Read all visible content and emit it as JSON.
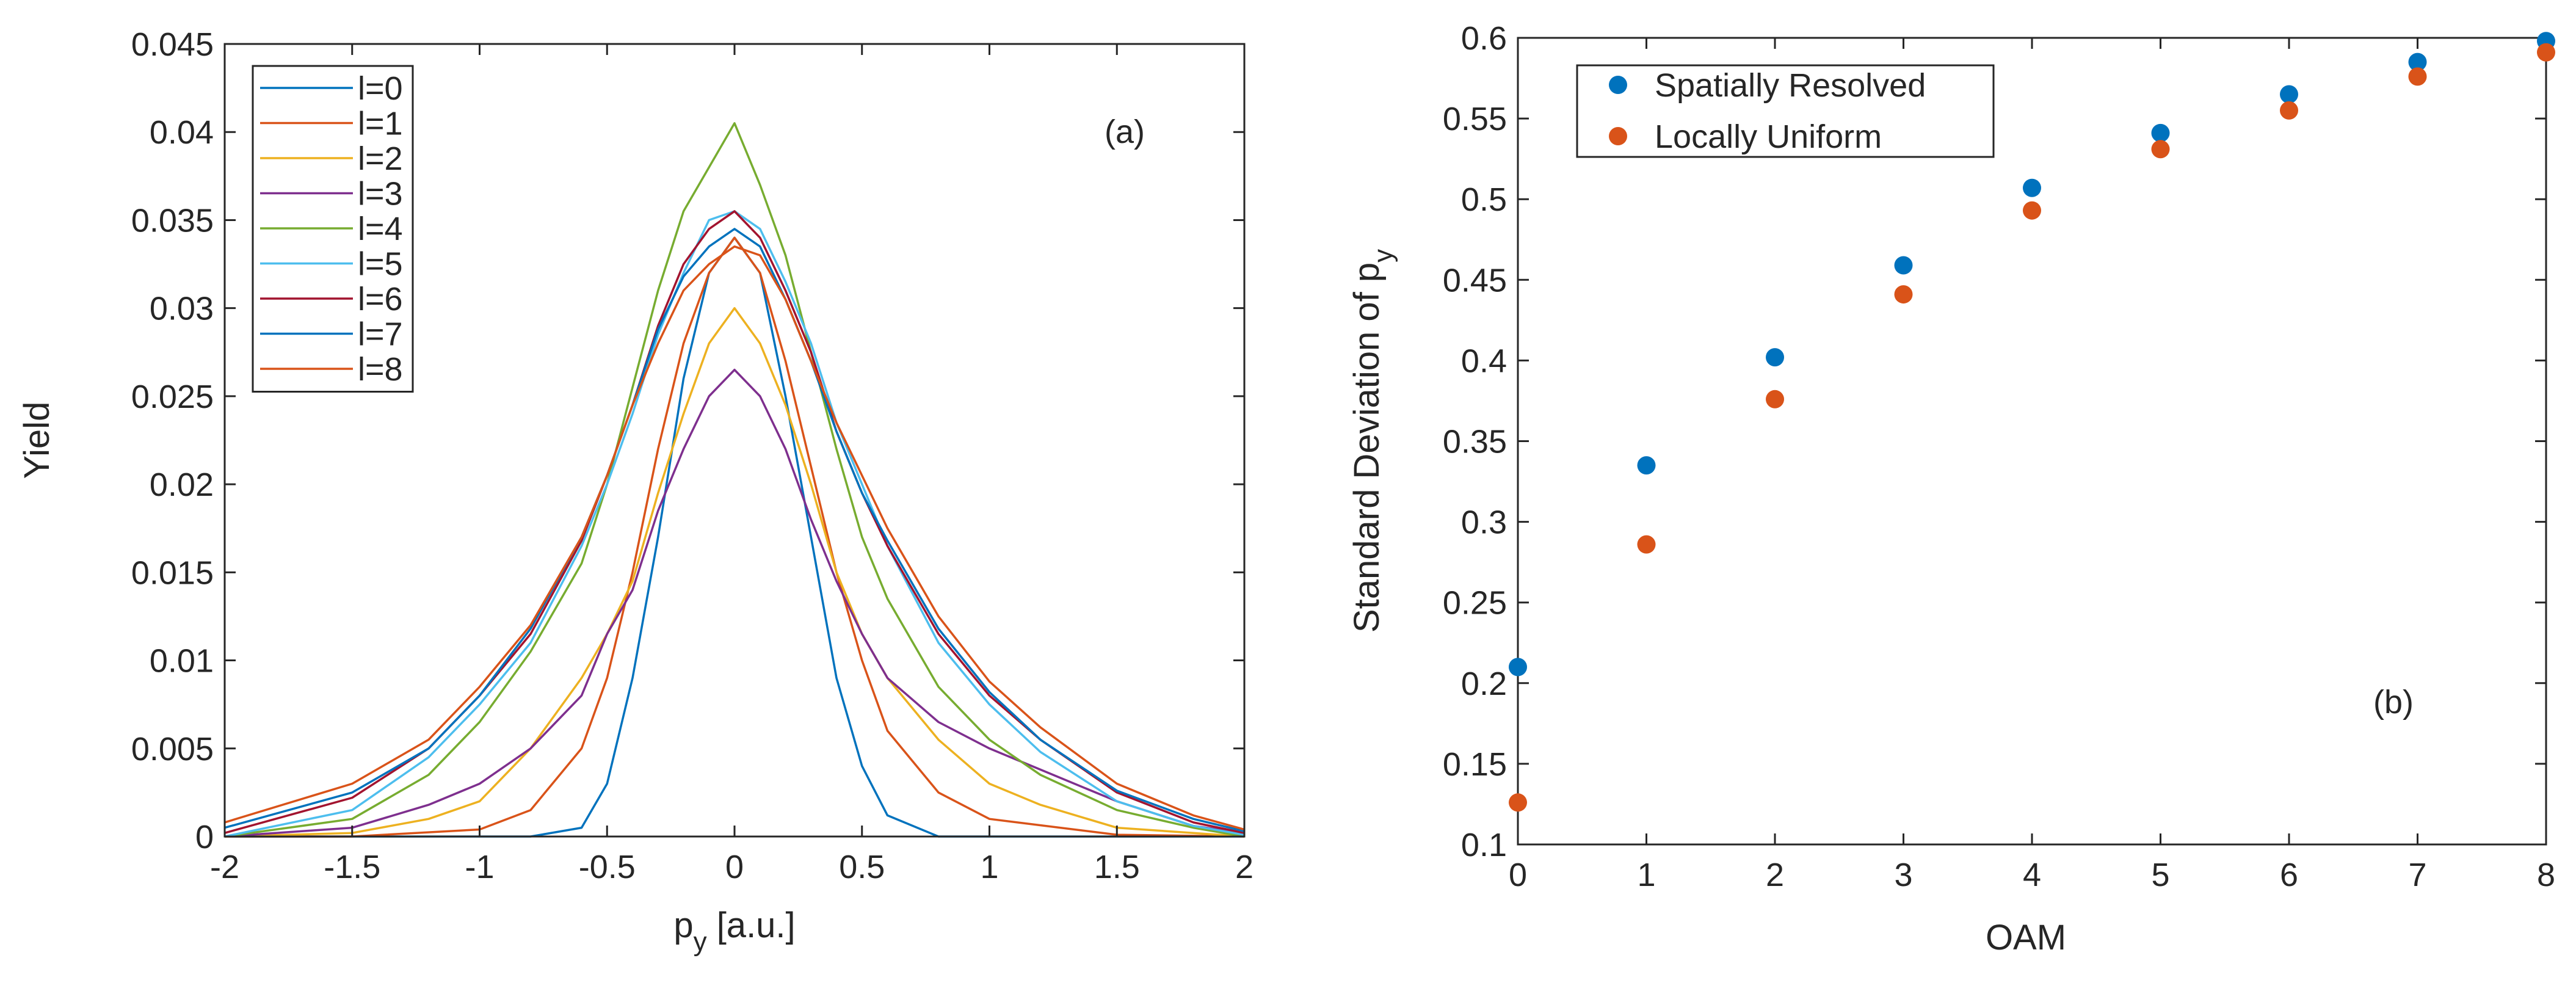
{
  "chart_data": [
    {
      "type": "line",
      "panel_label": "(a)",
      "xlabel": "p",
      "xlabel_sub": "y",
      "xlabel_unit": " [a.u.]",
      "ylabel": "Yield",
      "xlim": [
        -2,
        2
      ],
      "ylim": [
        0,
        0.045
      ],
      "xticks": [
        -2,
        -1.5,
        -1,
        -0.5,
        0,
        0.5,
        1,
        1.5,
        2
      ],
      "xtick_labels": [
        "-2",
        "-1.5",
        "-1",
        "-0.5",
        "0",
        "0.5",
        "1",
        "1.5",
        "2"
      ],
      "yticks": [
        0,
        0.005,
        0.01,
        0.015,
        0.02,
        0.025,
        0.03,
        0.035,
        0.04,
        0.045
      ],
      "ytick_labels": [
        "0",
        "0.005",
        "0.01",
        "0.015",
        "0.02",
        "0.025",
        "0.03",
        "0.035",
        "0.04",
        "0.045"
      ],
      "grid": false,
      "legend_position": "top-left",
      "series": [
        {
          "name": "l=0",
          "color": "#0072BD",
          "x": [
            -2,
            -1.5,
            -1,
            -0.8,
            -0.6,
            -0.5,
            -0.4,
            -0.3,
            -0.2,
            -0.1,
            0,
            0.1,
            0.2,
            0.3,
            0.4,
            0.5,
            0.6,
            0.8,
            1,
            1.5,
            2
          ],
          "y": [
            0,
            0,
            0,
            0,
            0.0005,
            0.003,
            0.009,
            0.017,
            0.026,
            0.032,
            0.034,
            0.032,
            0.025,
            0.017,
            0.009,
            0.004,
            0.0012,
            0,
            0,
            0,
            0
          ]
        },
        {
          "name": "l=1",
          "color": "#D95319",
          "x": [
            -2,
            -1.5,
            -1,
            -0.8,
            -0.6,
            -0.5,
            -0.4,
            -0.3,
            -0.2,
            -0.1,
            0,
            0.1,
            0.2,
            0.3,
            0.4,
            0.5,
            0.6,
            0.8,
            1,
            1.5,
            2
          ],
          "y": [
            0,
            0,
            0.0004,
            0.0015,
            0.005,
            0.009,
            0.015,
            0.022,
            0.028,
            0.032,
            0.034,
            0.032,
            0.027,
            0.021,
            0.015,
            0.01,
            0.006,
            0.0025,
            0.001,
            0.0001,
            0
          ]
        },
        {
          "name": "l=2",
          "color": "#EDB120",
          "x": [
            -2,
            -1.5,
            -1.2,
            -1,
            -0.8,
            -0.6,
            -0.5,
            -0.4,
            -0.3,
            -0.2,
            -0.1,
            0,
            0.1,
            0.2,
            0.3,
            0.4,
            0.5,
            0.6,
            0.8,
            1,
            1.2,
            1.5,
            2
          ],
          "y": [
            0,
            0.0002,
            0.001,
            0.002,
            0.005,
            0.009,
            0.0115,
            0.0145,
            0.0195,
            0.024,
            0.028,
            0.03,
            0.028,
            0.0245,
            0.02,
            0.015,
            0.0115,
            0.009,
            0.0055,
            0.003,
            0.0018,
            0.0005,
            0
          ]
        },
        {
          "name": "l=3",
          "color": "#7E2F8E",
          "x": [
            -2,
            -1.5,
            -1.2,
            -1,
            -0.8,
            -0.6,
            -0.5,
            -0.4,
            -0.3,
            -0.2,
            -0.1,
            0,
            0.1,
            0.2,
            0.3,
            0.4,
            0.5,
            0.6,
            0.8,
            1,
            1.2,
            1.5,
            1.8,
            2
          ],
          "y": [
            0,
            0.0005,
            0.0018,
            0.003,
            0.005,
            0.008,
            0.0115,
            0.014,
            0.0185,
            0.022,
            0.025,
            0.0265,
            0.025,
            0.022,
            0.018,
            0.0145,
            0.0115,
            0.009,
            0.0065,
            0.005,
            0.0038,
            0.002,
            0.0006,
            0.0002
          ]
        },
        {
          "name": "l=4",
          "color": "#77AC30",
          "x": [
            -2,
            -1.5,
            -1.2,
            -1,
            -0.8,
            -0.6,
            -0.5,
            -0.4,
            -0.3,
            -0.2,
            -0.1,
            0,
            0.1,
            0.2,
            0.3,
            0.4,
            0.5,
            0.6,
            0.8,
            1,
            1.2,
            1.5,
            1.8,
            2
          ],
          "y": [
            0,
            0.001,
            0.0035,
            0.0065,
            0.0105,
            0.0155,
            0.02,
            0.0255,
            0.031,
            0.0355,
            0.038,
            0.0405,
            0.037,
            0.033,
            0.0275,
            0.022,
            0.017,
            0.0135,
            0.0085,
            0.0055,
            0.0035,
            0.0015,
            0.0005,
            0
          ]
        },
        {
          "name": "l=5",
          "color": "#4DBEEE",
          "x": [
            -2,
            -1.5,
            -1.2,
            -1,
            -0.8,
            -0.6,
            -0.5,
            -0.4,
            -0.3,
            -0.2,
            -0.1,
            0,
            0.1,
            0.2,
            0.3,
            0.4,
            0.5,
            0.6,
            0.8,
            1,
            1.2,
            1.5,
            1.8,
            2
          ],
          "y": [
            0,
            0.0015,
            0.0045,
            0.0075,
            0.011,
            0.0165,
            0.02,
            0.024,
            0.0285,
            0.032,
            0.035,
            0.0355,
            0.0345,
            0.0315,
            0.028,
            0.0235,
            0.02,
            0.0165,
            0.011,
            0.0075,
            0.0048,
            0.002,
            0.0006,
            0.0001
          ]
        },
        {
          "name": "l=6",
          "color": "#A2142F",
          "x": [
            -2,
            -1.5,
            -1.2,
            -1,
            -0.8,
            -0.6,
            -0.5,
            -0.4,
            -0.3,
            -0.2,
            -0.1,
            0,
            0.1,
            0.2,
            0.3,
            0.4,
            0.5,
            0.6,
            0.8,
            1,
            1.2,
            1.5,
            1.8,
            2
          ],
          "y": [
            0.0002,
            0.0022,
            0.005,
            0.008,
            0.0115,
            0.0168,
            0.0205,
            0.0245,
            0.029,
            0.0325,
            0.0345,
            0.0355,
            0.034,
            0.031,
            0.0275,
            0.023,
            0.0195,
            0.0165,
            0.0115,
            0.008,
            0.0055,
            0.0025,
            0.0008,
            0.0002
          ]
        },
        {
          "name": "l=7",
          "color": "#0072BD",
          "x": [
            -2,
            -1.5,
            -1.2,
            -1,
            -0.8,
            -0.6,
            -0.5,
            -0.4,
            -0.3,
            -0.2,
            -0.1,
            0,
            0.1,
            0.2,
            0.3,
            0.4,
            0.5,
            0.6,
            0.8,
            1,
            1.2,
            1.5,
            1.8,
            2
          ],
          "y": [
            0.0005,
            0.0025,
            0.005,
            0.008,
            0.0118,
            0.017,
            0.0205,
            0.0245,
            0.0288,
            0.0318,
            0.0335,
            0.0345,
            0.0335,
            0.0305,
            0.027,
            0.023,
            0.0195,
            0.0168,
            0.0118,
            0.0082,
            0.0055,
            0.0026,
            0.001,
            0.0003
          ]
        },
        {
          "name": "l=8",
          "color": "#D95319",
          "x": [
            -2,
            -1.5,
            -1.2,
            -1,
            -0.8,
            -0.6,
            -0.5,
            -0.4,
            -0.3,
            -0.2,
            -0.1,
            0,
            0.1,
            0.2,
            0.3,
            0.4,
            0.5,
            0.6,
            0.8,
            1,
            1.2,
            1.5,
            1.8,
            2
          ],
          "y": [
            0.0008,
            0.003,
            0.0055,
            0.0085,
            0.012,
            0.017,
            0.0205,
            0.0245,
            0.028,
            0.031,
            0.0325,
            0.0335,
            0.033,
            0.0305,
            0.027,
            0.0235,
            0.0205,
            0.0175,
            0.0125,
            0.0088,
            0.0062,
            0.003,
            0.0012,
            0.0004
          ]
        }
      ]
    },
    {
      "type": "scatter",
      "panel_label": "(b)",
      "xlabel": "OAM",
      "ylabel": "Standard Deviation of p",
      "ylabel_sub": "y",
      "xlim": [
        0,
        8
      ],
      "ylim": [
        0.1,
        0.6
      ],
      "xticks": [
        0,
        1,
        2,
        3,
        4,
        5,
        6,
        7,
        8
      ],
      "xtick_labels": [
        "0",
        "1",
        "2",
        "3",
        "4",
        "5",
        "6",
        "7",
        "8"
      ],
      "yticks": [
        0.1,
        0.15,
        0.2,
        0.25,
        0.3,
        0.35,
        0.4,
        0.45,
        0.5,
        0.55,
        0.6
      ],
      "ytick_labels": [
        "0.1",
        "0.15",
        "0.2",
        "0.25",
        "0.3",
        "0.35",
        "0.4",
        "0.45",
        "0.5",
        "0.55",
        "0.6"
      ],
      "grid": false,
      "legend_position": "top-left",
      "series": [
        {
          "name": "Spatially Resolved",
          "color": "#0072BD",
          "x": [
            0,
            1,
            2,
            3,
            4,
            5,
            6,
            7,
            8
          ],
          "y": [
            0.21,
            0.335,
            0.402,
            0.459,
            0.507,
            0.541,
            0.565,
            0.585,
            0.598
          ]
        },
        {
          "name": "Locally Uniform",
          "color": "#D95319",
          "x": [
            0,
            1,
            2,
            3,
            4,
            5,
            6,
            7,
            8
          ],
          "y": [
            0.126,
            0.286,
            0.376,
            0.441,
            0.493,
            0.531,
            0.555,
            0.576,
            0.591
          ]
        }
      ]
    }
  ]
}
